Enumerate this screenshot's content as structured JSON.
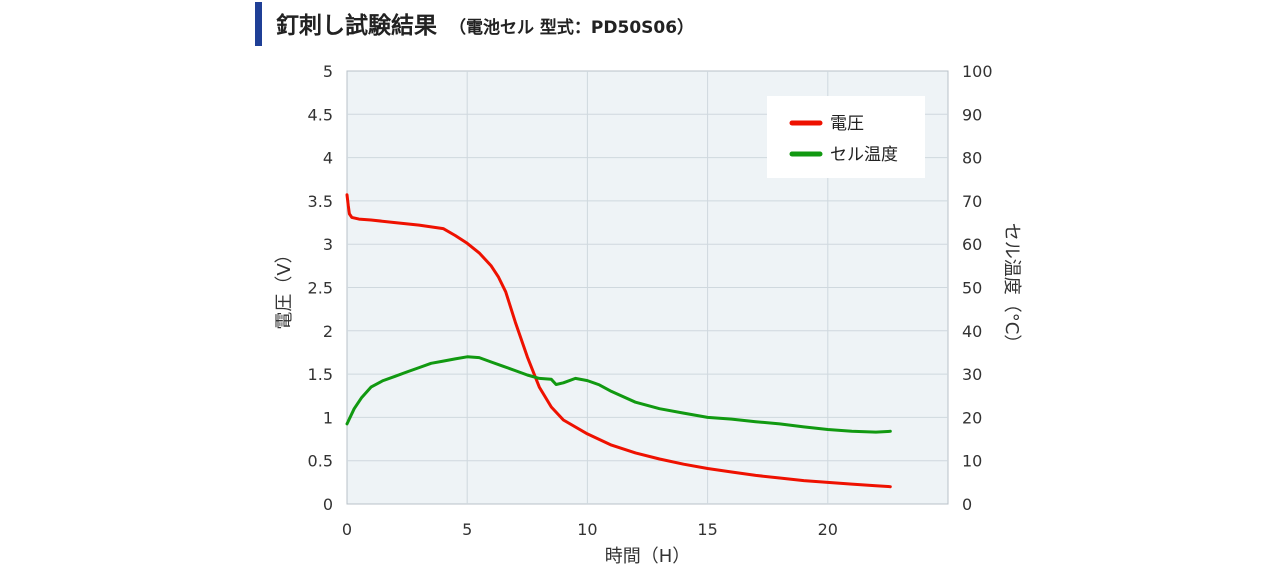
{
  "header": {
    "title": "釘刺し試験結果",
    "subtitle": "（電池セル 型式：PD50S06）"
  },
  "colors": {
    "accent_bar": "#1f3f96",
    "plot_bg": "#eef3f6",
    "grid": "#cfd8de",
    "voltage": "#ee1100",
    "temperature": "#119911"
  },
  "chart_data": {
    "type": "line",
    "title": "",
    "xlabel": "時間（H）",
    "ylabel_left": "電圧（V）",
    "ylabel_right": "セル温度（°C）",
    "xlim": [
      0,
      25
    ],
    "ylim_left": [
      0,
      5
    ],
    "ylim_right": [
      0,
      100
    ],
    "x_ticks": [
      "0",
      "5",
      "10",
      "15",
      "20"
    ],
    "y_left_ticks": [
      "0",
      "0.5",
      "1",
      "1.5",
      "2",
      "2.5",
      "3",
      "3.5",
      "4",
      "4.5",
      "5"
    ],
    "y_right_ticks": [
      "0",
      "10",
      "20",
      "30",
      "40",
      "50",
      "60",
      "70",
      "80",
      "90",
      "100"
    ],
    "grid": true,
    "legend_position": "top-right",
    "series": [
      {
        "name": "電圧",
        "axis": "left",
        "x": [
          0,
          0.05,
          0.1,
          0.2,
          0.5,
          1,
          2,
          3,
          4,
          4.5,
          5,
          5.5,
          6,
          6.3,
          6.6,
          7,
          7.5,
          8,
          8.5,
          9,
          10,
          11,
          12,
          13,
          14,
          15,
          16,
          17,
          18,
          19,
          20,
          21,
          22,
          22.6
        ],
        "values": [
          3.57,
          3.45,
          3.35,
          3.31,
          3.29,
          3.28,
          3.25,
          3.22,
          3.18,
          3.1,
          3.01,
          2.9,
          2.75,
          2.62,
          2.45,
          2.1,
          1.7,
          1.35,
          1.12,
          0.97,
          0.81,
          0.68,
          0.59,
          0.52,
          0.46,
          0.41,
          0.37,
          0.33,
          0.3,
          0.27,
          0.25,
          0.23,
          0.21,
          0.2
        ]
      },
      {
        "name": "セル温度",
        "axis": "right",
        "x": [
          0,
          0.3,
          0.6,
          1,
          1.5,
          2,
          2.5,
          3,
          3.5,
          4,
          4.5,
          5,
          5.5,
          6,
          6.5,
          7,
          7.5,
          8,
          8.5,
          8.7,
          9,
          9.5,
          10,
          10.5,
          11,
          12,
          13,
          14,
          15,
          16,
          17,
          18,
          19,
          20,
          21,
          22,
          22.6
        ],
        "values": [
          18.5,
          22,
          24.5,
          27,
          28.5,
          29.5,
          30.5,
          31.5,
          32.5,
          33,
          33.5,
          34,
          33.8,
          32.8,
          31.8,
          30.8,
          29.8,
          29,
          28.8,
          27.6,
          28,
          29,
          28.5,
          27.5,
          26,
          23.5,
          22,
          21,
          20,
          19.6,
          19,
          18.5,
          17.8,
          17.2,
          16.8,
          16.6,
          16.8
        ]
      }
    ]
  }
}
